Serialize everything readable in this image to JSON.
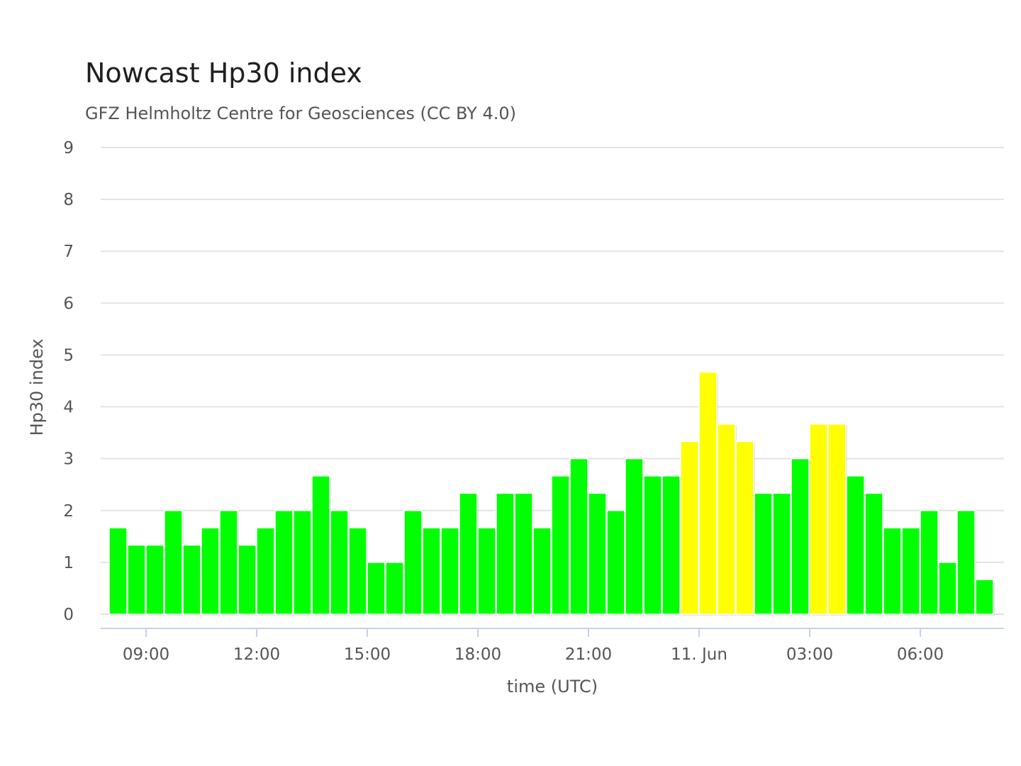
{
  "chart_data": {
    "type": "bar",
    "title": "Nowcast Hp30 index",
    "subtitle": "GFZ Helmholtz Centre for Geosciences (CC BY 4.0)",
    "xlabel": "time (UTC)",
    "ylabel": "Hp30 index",
    "ylim": [
      0,
      9
    ],
    "yticks": [
      0,
      1,
      2,
      3,
      4,
      5,
      6,
      7,
      8,
      9
    ],
    "grid": true,
    "legend": "none",
    "x_start": "10 Jun 08:00 UTC",
    "x_step_minutes": 30,
    "xtick_labels": [
      "09:00",
      "12:00",
      "15:00",
      "18:00",
      "21:00",
      "11. Jun",
      "03:00",
      "06:00"
    ],
    "colors": {
      "green": "#00ff00",
      "yellow": "#ffff00"
    },
    "values": [
      1.667,
      1.333,
      1.333,
      2,
      1.333,
      1.667,
      2,
      1.333,
      1.667,
      2,
      2,
      2.667,
      2,
      1.667,
      1,
      1,
      2,
      1.667,
      1.667,
      2.333,
      1.667,
      2.333,
      2.333,
      1.667,
      2.667,
      3,
      2.333,
      2,
      3,
      2.667,
      2.667,
      3.333,
      4.667,
      3.667,
      3.333,
      2.333,
      2.333,
      3,
      3.667,
      3.667,
      2.667,
      2.333,
      1.667,
      1.667,
      2,
      1,
      2,
      0.667
    ],
    "bar_colors": [
      "green",
      "green",
      "green",
      "green",
      "green",
      "green",
      "green",
      "green",
      "green",
      "green",
      "green",
      "green",
      "green",
      "green",
      "green",
      "green",
      "green",
      "green",
      "green",
      "green",
      "green",
      "green",
      "green",
      "green",
      "green",
      "green",
      "green",
      "green",
      "green",
      "green",
      "green",
      "yellow",
      "yellow",
      "yellow",
      "yellow",
      "green",
      "green",
      "green",
      "yellow",
      "yellow",
      "green",
      "green",
      "green",
      "green",
      "green",
      "green",
      "green",
      "green"
    ]
  }
}
